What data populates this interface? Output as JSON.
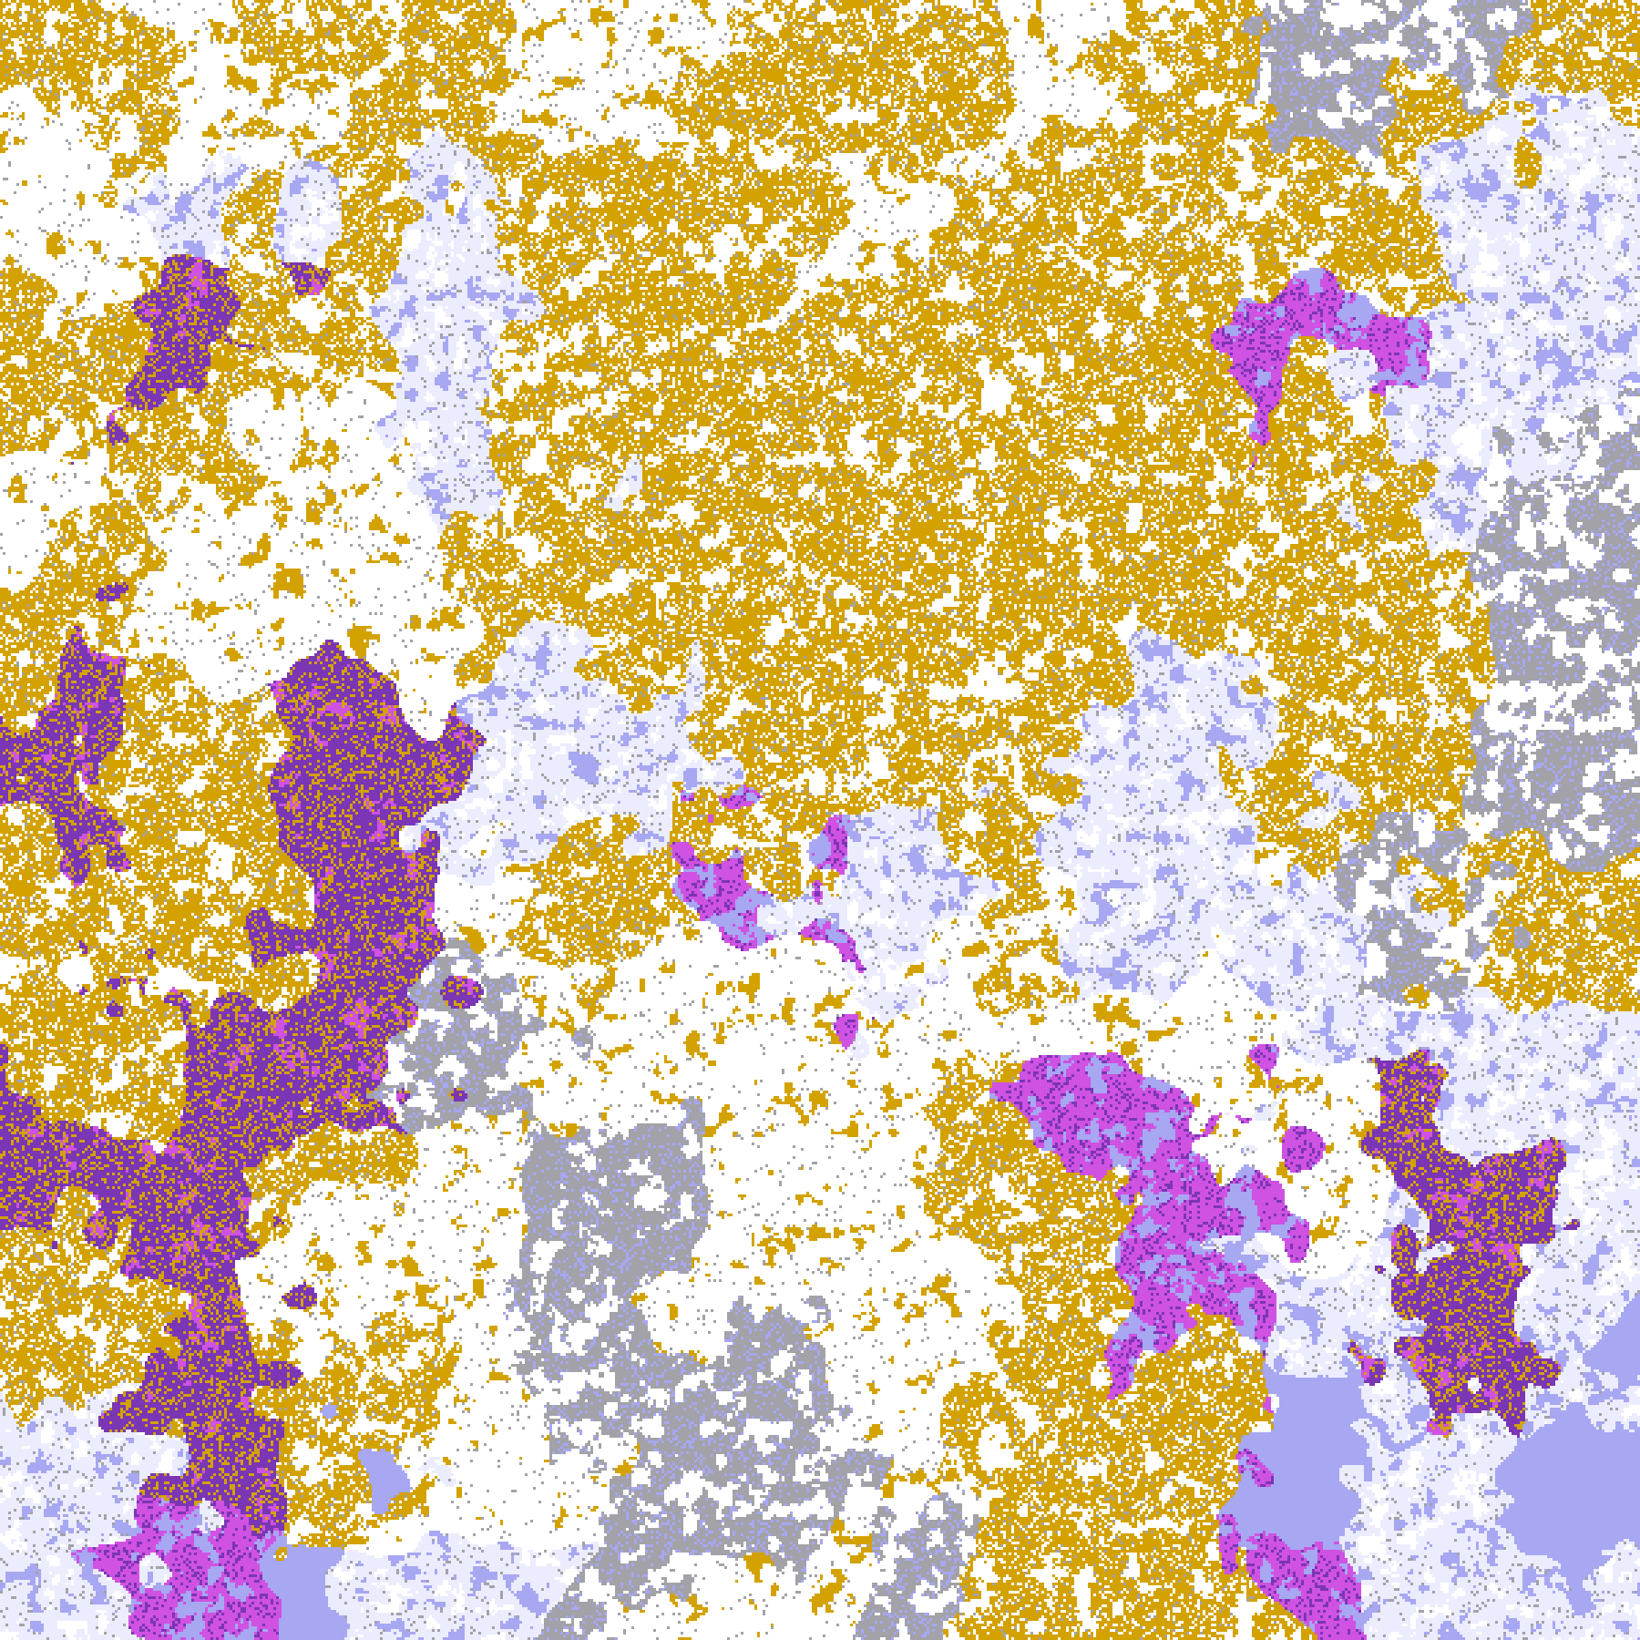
{
  "image": {
    "kind": "false-color satellite cloud composite",
    "palette": {
      "gold": "#d4a200",
      "purple": "#7a36b4",
      "magenta": "#cf52e2",
      "lavender": "#ececff",
      "periwinkle": "#a7a7f2",
      "gray": "#a2a2a8",
      "white": "#ffffff"
    }
  }
}
